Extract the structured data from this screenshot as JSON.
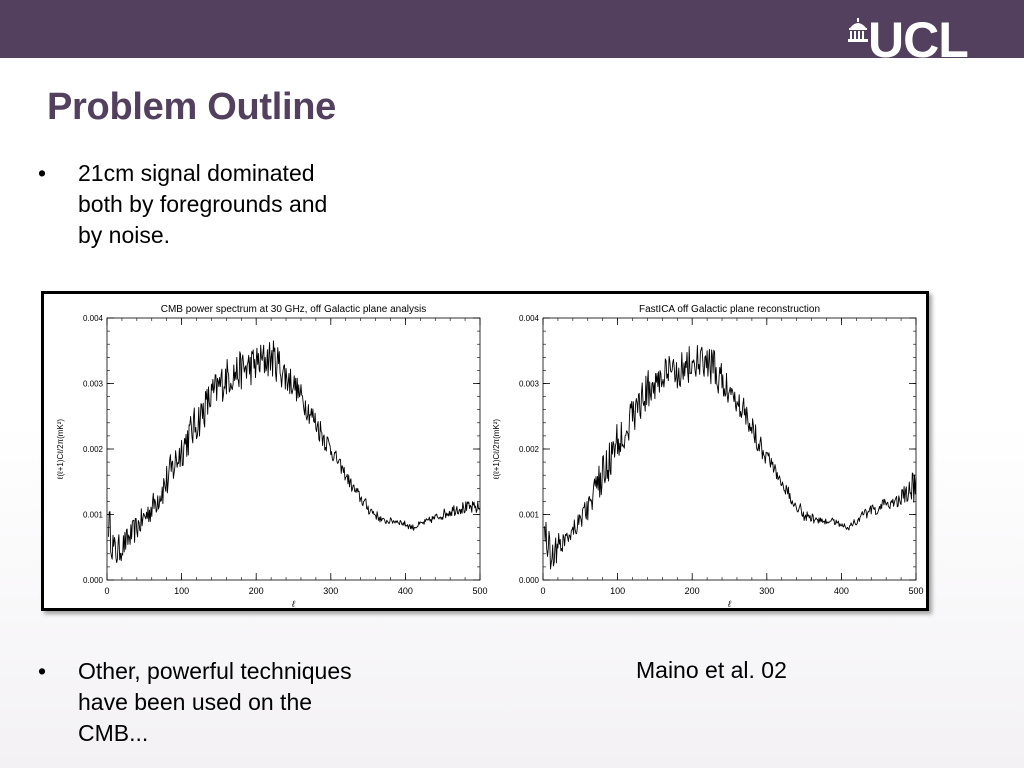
{
  "header": {
    "logo_text": "UCL",
    "logo_icon": "portico-dome-icon",
    "bar_color": "#52405e"
  },
  "slide": {
    "title": "Problem Outline",
    "bullets": [
      {
        "marker": "•",
        "text": "21cm signal dominated both by foregrounds and by noise."
      },
      {
        "marker": "•",
        "text": "Other, powerful techniques have been used on the CMB..."
      }
    ],
    "citation": "Maino et al. 02"
  },
  "chart_data": [
    {
      "type": "line",
      "title": "CMB power spectrum at 30 GHz, off Galactic plane analysis",
      "xlabel": "ℓ",
      "ylabel": "ℓ(ℓ+1)Cℓ/2π(mK²)",
      "xlim": [
        0,
        500
      ],
      "ylim": [
        0,
        0.004
      ],
      "x_ticks": [
        "0",
        "100",
        "200",
        "300",
        "400",
        "500"
      ],
      "y_ticks": [
        "0.000",
        "0.001",
        "0.002",
        "0.003",
        "0.004"
      ],
      "grid": false,
      "series": [
        {
          "x": [
            2,
            10,
            20,
            40,
            60,
            80,
            100,
            120,
            140,
            160,
            180,
            200,
            220,
            230,
            240,
            250,
            270,
            290,
            310,
            330,
            350,
            370,
            390,
            410,
            430,
            450,
            470,
            500
          ],
          "y": [
            0.0009,
            0.0004,
            0.0005,
            0.0008,
            0.0011,
            0.0015,
            0.002,
            0.0024,
            0.0028,
            0.0031,
            0.0032,
            0.0033,
            0.0034,
            0.0033,
            0.0031,
            0.003,
            0.0026,
            0.0022,
            0.0018,
            0.0014,
            0.0011,
            0.0009,
            0.0009,
            0.0008,
            0.0009,
            0.001,
            0.0011,
            0.0011
          ],
          "noise": [
            0.0003,
            0.0003,
            0.0002,
            0.0002,
            0.0002,
            0.0003,
            0.0003,
            0.0003,
            0.0003,
            0.0003,
            0.0003,
            0.0003,
            0.0003,
            0.0003,
            0.0003,
            0.0002,
            0.0002,
            0.0002,
            0.0001,
            0.0001,
            0.0001,
            5e-05,
            5e-05,
            5e-05,
            5e-05,
            8e-05,
            0.0001,
            0.0001
          ]
        }
      ]
    },
    {
      "type": "line",
      "title": "FastICA off Galactic plane reconstruction",
      "xlabel": "ℓ",
      "ylabel": "ℓ(ℓ+1)Cℓ/2π(mK²)",
      "xlim": [
        0,
        500
      ],
      "ylim": [
        0,
        0.004
      ],
      "x_ticks": [
        "0",
        "100",
        "200",
        "300",
        "400",
        "500"
      ],
      "y_ticks": [
        "0.000",
        "0.001",
        "0.002",
        "0.003",
        "0.004"
      ],
      "grid": false,
      "series": [
        {
          "x": [
            2,
            10,
            20,
            40,
            60,
            80,
            100,
            120,
            140,
            160,
            180,
            200,
            220,
            230,
            240,
            250,
            270,
            290,
            310,
            330,
            350,
            370,
            390,
            410,
            430,
            450,
            470,
            490,
            500
          ],
          "y": [
            0.0008,
            0.0004,
            0.0005,
            0.0008,
            0.0011,
            0.0016,
            0.0021,
            0.0025,
            0.0029,
            0.0031,
            0.0032,
            0.0033,
            0.0033,
            0.0032,
            0.003,
            0.0029,
            0.0026,
            0.0021,
            0.0017,
            0.0013,
            0.001,
            0.0009,
            0.0009,
            0.0008,
            0.001,
            0.0011,
            0.0012,
            0.0013,
            0.0015
          ],
          "noise": [
            0.0003,
            0.0003,
            0.0002,
            0.0002,
            0.0002,
            0.0003,
            0.0003,
            0.0003,
            0.0003,
            0.0003,
            0.0003,
            0.0003,
            0.0003,
            0.0003,
            0.0003,
            0.0002,
            0.0002,
            0.0002,
            0.0001,
            0.0001,
            0.0001,
            5e-05,
            5e-05,
            5e-05,
            8e-05,
            0.0001,
            0.0001,
            0.0002,
            0.0003
          ]
        }
      ]
    }
  ]
}
